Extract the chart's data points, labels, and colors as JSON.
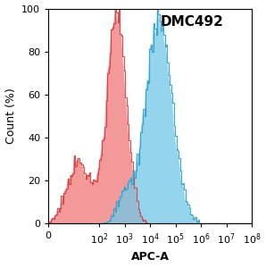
{
  "title": "DMC492",
  "xlabel": "APC-A",
  "ylabel": "Count (%)",
  "ylim": [
    0,
    100
  ],
  "yticks": [
    0,
    20,
    40,
    60,
    80,
    100
  ],
  "red_fill_color": "#F08080",
  "red_edge_color": "#D04040",
  "blue_fill_color": "#70C8E8",
  "blue_edge_color": "#30A0C8",
  "red_peak_log": 2.68,
  "red_sigma_log": 0.38,
  "blue_peak_log": 4.35,
  "blue_sigma_log": 0.52,
  "background_color": "#ffffff",
  "title_fontsize": 11,
  "label_fontsize": 9,
  "tick_fontsize": 8
}
